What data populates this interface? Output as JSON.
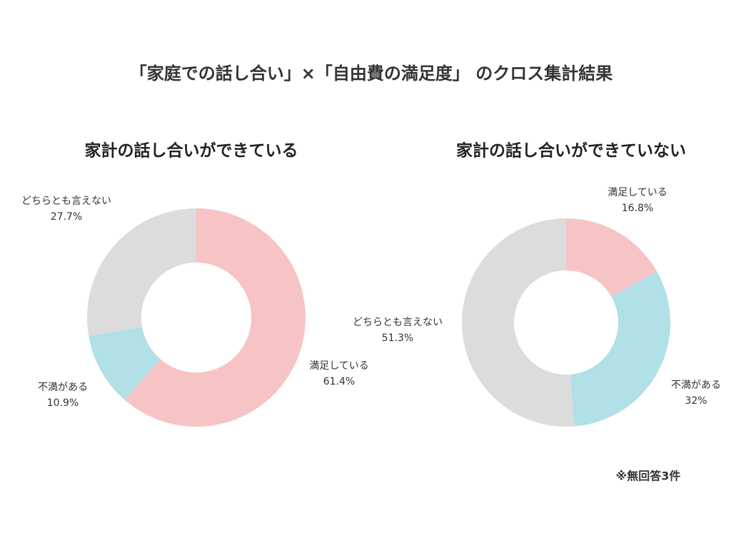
{
  "title": "「家庭での話し合い」×「自由費の満足度」 のクロス集計結果",
  "note": "※無回答3件",
  "chart_data": [
    {
      "type": "pie",
      "title": "家計の話し合いができている",
      "categories": [
        "満足している",
        "不満がある",
        "どちらとも言えない"
      ],
      "values": [
        61.4,
        10.9,
        27.7
      ],
      "value_labels": [
        "61.4%",
        "10.9%",
        "27.7%"
      ],
      "colors": [
        "#f7c4c6",
        "#b1e0e6",
        "#dcdcdc"
      ]
    },
    {
      "type": "pie",
      "title": "家計の話し合いができていない",
      "categories": [
        "満足している",
        "不満がある",
        "どちらとも言えない"
      ],
      "values": [
        16.8,
        32,
        51.3
      ],
      "value_labels": [
        "16.8%",
        "32%",
        "51.3%"
      ],
      "colors": [
        "#f7c4c6",
        "#b1e0e6",
        "#dcdcdc"
      ]
    }
  ]
}
